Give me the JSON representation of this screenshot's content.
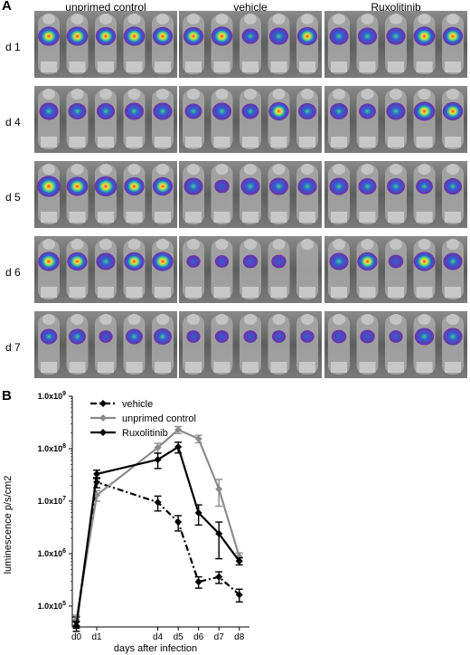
{
  "panel_a": {
    "letter": "A",
    "columns": [
      "unprimed control",
      "vehicle",
      "Ruxolitinib"
    ],
    "rows": [
      "d 1",
      "d 4",
      "d 5",
      "d 6",
      "d 7"
    ]
  },
  "panel_b": {
    "letter": "B"
  },
  "chart_data": {
    "type": "line",
    "title": "",
    "xlabel": "days after infection",
    "ylabel": "luminescence p/s/cm2",
    "x_ticks": [
      "d0",
      "d1",
      "d4",
      "d5",
      "d6",
      "d7",
      "d8"
    ],
    "x_days": [
      0,
      1,
      4,
      5,
      6,
      7,
      8
    ],
    "y_scale": "log",
    "y_ticks": [
      "1.0x10^5",
      "1.0x10^6",
      "1.0x10^7",
      "1.0x10^8",
      "1.0x10^9"
    ],
    "ylim": [
      40000,
      1000000000
    ],
    "legend_position": "top",
    "series": [
      {
        "name": "vehicle",
        "style": "dash-dot",
        "color": "#000000",
        "marker": "diamond",
        "x": [
          0,
          1,
          4,
          5,
          6,
          7,
          8
        ],
        "values": [
          50000,
          23000000,
          9500000,
          4000000,
          290000,
          360000,
          165000
        ],
        "err": [
          12000,
          5000000,
          3000000,
          1300000,
          70000,
          90000,
          45000
        ]
      },
      {
        "name": "unprimed control",
        "style": "solid",
        "color": "#8c8c8c",
        "marker": "diamond",
        "x": [
          0,
          1,
          4,
          5,
          6,
          7,
          8
        ],
        "values": [
          55000,
          13000000,
          105000000,
          230000000,
          155000000,
          17000000,
          880000
        ],
        "err": [
          12000,
          3000000,
          22000000,
          35000000,
          25000000,
          9000000,
          150000
        ]
      },
      {
        "name": "Ruxolitinib",
        "style": "solid",
        "color": "#000000",
        "marker": "diamond",
        "x": [
          0,
          1,
          4,
          5,
          6,
          7,
          8
        ],
        "values": [
          42000,
          33000000,
          62000000,
          108000000,
          6000000,
          2400000,
          720000
        ],
        "err": [
          9000,
          6000000,
          20000000,
          25000000,
          2500000,
          1600000,
          110000
        ]
      }
    ]
  }
}
